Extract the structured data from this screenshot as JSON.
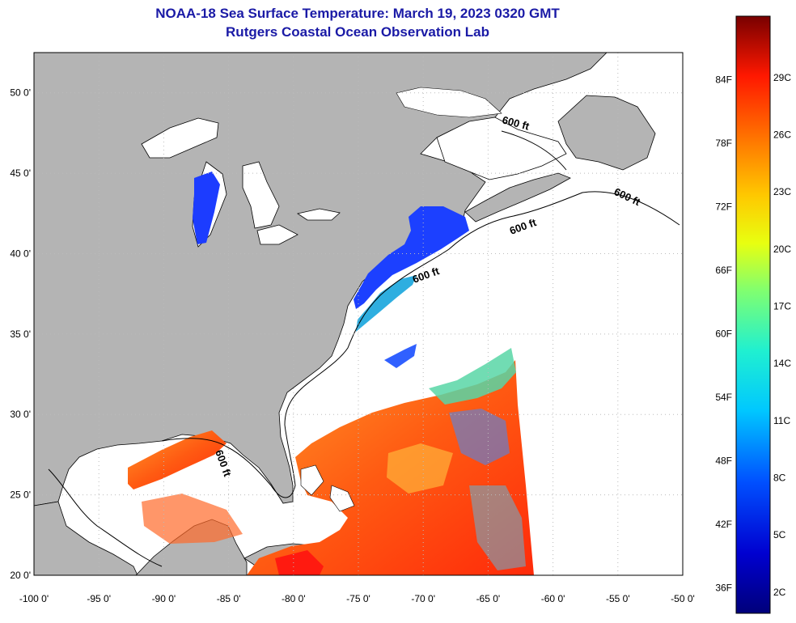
{
  "title": {
    "line1": "NOAA-18 Sea Surface Temperature:  March 19, 2023 0320 GMT",
    "line2": "Rutgers Coastal Ocean Observation Lab"
  },
  "map": {
    "lon_labels": [
      "-100 0'",
      "-95 0'",
      "-90 0'",
      "-85 0'",
      "-80 0'",
      "-75 0'",
      "-70 0'",
      "-65 0'",
      "-60 0'",
      "-55 0'",
      "-50 0'"
    ],
    "lat_labels": [
      "20 0'",
      "25 0'",
      "30 0'",
      "35 0'",
      "40 0'",
      "45 0'",
      "50 0'"
    ],
    "lon_range": [
      -100,
      -50
    ],
    "lat_range": [
      20,
      52.5
    ],
    "contour_label": "600 ft",
    "colors": {
      "land": "#b4b4b4",
      "ocean_no_data": "#ffffff",
      "grid": "#bbbbbb"
    }
  },
  "colorbar": {
    "fahrenheit_labels": [
      "84F",
      "78F",
      "72F",
      "66F",
      "60F",
      "54F",
      "48F",
      "42F",
      "36F"
    ],
    "celsius_labels": [
      "29C",
      "26C",
      "23C",
      "20C",
      "17C",
      "14C",
      "11C",
      "8C",
      "5C",
      "2C"
    ]
  }
}
